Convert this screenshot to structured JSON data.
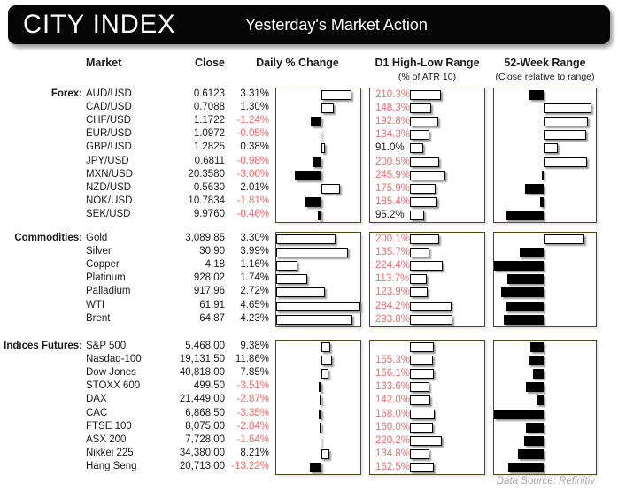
{
  "header": {
    "brand": "CITY INDEX",
    "title": "Yesterday's Market Action"
  },
  "table_headers": {
    "market": "Market",
    "close": "Close",
    "daily_change": "Daily % Change",
    "d1_range": "D1 High-Low Range",
    "d1_range_sub": "(% of ATR 10)",
    "week52_range": "52-Week Range",
    "week52_range_sub": "(Close relative to range)"
  },
  "footer": {
    "data_source": "Data Source: Refinitiv"
  },
  "colors": {
    "header_bg": "#060606",
    "negative_red": "#f56a6a",
    "chart_border": "#4a4a10",
    "bar_positive_fill": "#ffffff",
    "bar_negative_fill": "#000000",
    "footer_gray": "#a8a8a8"
  },
  "chart_data": {
    "type": "bar",
    "title": "Yesterday's Market Action",
    "legend_position": "none",
    "grid": false,
    "notes": "Three horizontal-bar tables: Daily % Change (white=positive, black=negative), D1 High-Low Range as % of ATR10 (red label when >=100%), 52-Week Range close-relative-to-range deviation bars (white=upper half, black=lower half).",
    "d1_axis": {
      "min": 0,
      "max": 510
    },
    "sections": [
      {
        "label": "Forex:",
        "daily_axis": {
          "min": -5.05,
          "max": 4.3
        },
        "rows": [
          {
            "market": "AUD/USD",
            "close": "0.6123",
            "daily_label": "3.31%",
            "daily_pct": 3.31,
            "d1_label": "210.3%",
            "d1_pct": 210.3,
            "w52_frac": -0.29
          },
          {
            "market": "CAD/USD",
            "close": "0.7088",
            "daily_label": "1.30%",
            "daily_pct": 1.3,
            "d1_label": "148.3%",
            "d1_pct": 148.3,
            "w52_frac": 0.93
          },
          {
            "market": "CHF/USD",
            "close": "1.1722",
            "daily_label": "-1.24%",
            "daily_pct": -1.24,
            "d1_label": "192.8%",
            "d1_pct": 192.8,
            "w52_frac": 0.86
          },
          {
            "market": "EUR/USD",
            "close": "1.0972",
            "daily_label": "-0.05%",
            "daily_pct": -0.05,
            "d1_label": "134.3%",
            "d1_pct": 134.3,
            "w52_frac": 0.83
          },
          {
            "market": "GBP/USD",
            "close": "1.2825",
            "daily_label": "0.38%",
            "daily_pct": 0.38,
            "d1_label": "91.0%",
            "d1_pct": 91.0,
            "w52_frac": 0.27
          },
          {
            "market": "JPY/USD",
            "close": "0.6811",
            "daily_label": "-0.98%",
            "daily_pct": -0.98,
            "d1_label": "200.5%",
            "d1_pct": 200.5,
            "w52_frac": 0.85
          },
          {
            "market": "MXN/USD",
            "close": "20.3580",
            "daily_label": "-3.00%",
            "daily_pct": -3.0,
            "d1_label": "245.9%",
            "d1_pct": 245.9,
            "w52_frac": -0.04
          },
          {
            "market": "NZD/USD",
            "close": "0.5630",
            "daily_label": "2.01%",
            "daily_pct": 2.01,
            "d1_label": "175.9%",
            "d1_pct": 175.9,
            "w52_frac": -0.37
          },
          {
            "market": "NOK/USD",
            "close": "10.7834",
            "daily_label": "-1.81%",
            "daily_pct": -1.81,
            "d1_label": "185.4%",
            "d1_pct": 185.4,
            "w52_frac": -0.08
          },
          {
            "market": "SEK/USD",
            "close": "9.9760",
            "daily_label": "-0.46%",
            "daily_pct": -0.46,
            "d1_label": "95.2%",
            "d1_pct": 95.2,
            "w52_frac": -0.77
          }
        ]
      },
      {
        "label": "Commodities:",
        "daily_axis": {
          "min": 0,
          "max": 4.66
        },
        "rows": [
          {
            "market": "Gold",
            "close": "3,089.85",
            "daily_label": "3.30%",
            "daily_pct": 3.3,
            "d1_label": "200.1%",
            "d1_pct": 200.1,
            "w52_frac": 0.8
          },
          {
            "market": "Silver",
            "close": "30.90",
            "daily_label": "3.99%",
            "daily_pct": 3.99,
            "d1_label": "135.7%",
            "d1_pct": 135.7,
            "w52_frac": -0.49
          },
          {
            "market": "Copper",
            "close": "4.18",
            "daily_label": "1.16%",
            "daily_pct": 1.16,
            "d1_label": "224.4%",
            "d1_pct": 224.4,
            "w52_frac": -1.0
          },
          {
            "market": "Platinum",
            "close": "928.02",
            "daily_label": "1.74%",
            "daily_pct": 1.74,
            "d1_label": "113.7%",
            "d1_pct": 113.7,
            "w52_frac": -0.74
          },
          {
            "market": "Palladium",
            "close": "917.96",
            "daily_label": "2.72%",
            "daily_pct": 2.72,
            "d1_label": "123.9%",
            "d1_pct": 123.9,
            "w52_frac": -0.85
          },
          {
            "market": "WTI",
            "close": "61.91",
            "daily_label": "4.65%",
            "daily_pct": 4.65,
            "d1_label": "284.2%",
            "d1_pct": 284.2,
            "w52_frac": -0.76
          },
          {
            "market": "Brent",
            "close": "64.87",
            "daily_label": "4.23%",
            "daily_pct": 4.23,
            "d1_label": "293.8%",
            "d1_pct": 293.8,
            "w52_frac": -0.81
          }
        ]
      },
      {
        "label": "Indices Futures:",
        "daily_axis": {
          "min": -52,
          "max": 44
        },
        "rows": [
          {
            "market": "S&P 500",
            "close": "5,468.00",
            "daily_label": "9.38%",
            "daily_pct": 9.38,
            "d1_label": "",
            "d1_pct": 165.0,
            "w52_frac": -0.27
          },
          {
            "market": "Nasdaq-100",
            "close": "19,131.50",
            "daily_label": "11.86%",
            "daily_pct": 11.86,
            "d1_label": "155.3%",
            "d1_pct": 155.3,
            "w52_frac": -0.3
          },
          {
            "market": "Dow Jones",
            "close": "40,818.00",
            "daily_label": "7.85%",
            "daily_pct": 7.85,
            "d1_label": "166.1%",
            "d1_pct": 166.1,
            "w52_frac": -0.21
          },
          {
            "market": "STOXX 600",
            "close": "499.50",
            "daily_label": "-3.51%",
            "daily_pct": -3.51,
            "d1_label": "133.6%",
            "d1_pct": 133.6,
            "w52_frac": -0.36
          },
          {
            "market": "DAX",
            "close": "21,449.00",
            "daily_label": "-2.87%",
            "daily_pct": -2.87,
            "d1_label": "142.0%",
            "d1_pct": 142.0,
            "w52_frac": -0.15
          },
          {
            "market": "CAC",
            "close": "6,868.50",
            "daily_label": "-3.35%",
            "daily_pct": -3.35,
            "d1_label": "168.0%",
            "d1_pct": 168.0,
            "w52_frac": -1.0
          },
          {
            "market": "FTSE 100",
            "close": "8,075.00",
            "daily_label": "-2.84%",
            "daily_pct": -2.84,
            "d1_label": "160.0%",
            "d1_pct": 160.0,
            "w52_frac": -0.36
          },
          {
            "market": "ASX 200",
            "close": "7,728.00",
            "daily_label": "-1.64%",
            "daily_pct": -1.64,
            "d1_label": "220.2%",
            "d1_pct": 220.2,
            "w52_frac": -0.39
          },
          {
            "market": "Nikkei 225",
            "close": "34,380.00",
            "daily_label": "8.21%",
            "daily_pct": 8.21,
            "d1_label": "134.8%",
            "d1_pct": 134.8,
            "w52_frac": -0.51
          },
          {
            "market": "Hang Seng",
            "close": "20,713.00",
            "daily_label": "-13.22%",
            "daily_pct": -13.22,
            "d1_label": "162.5%",
            "d1_pct": 162.5,
            "w52_frac": -0.72
          }
        ]
      }
    ]
  }
}
